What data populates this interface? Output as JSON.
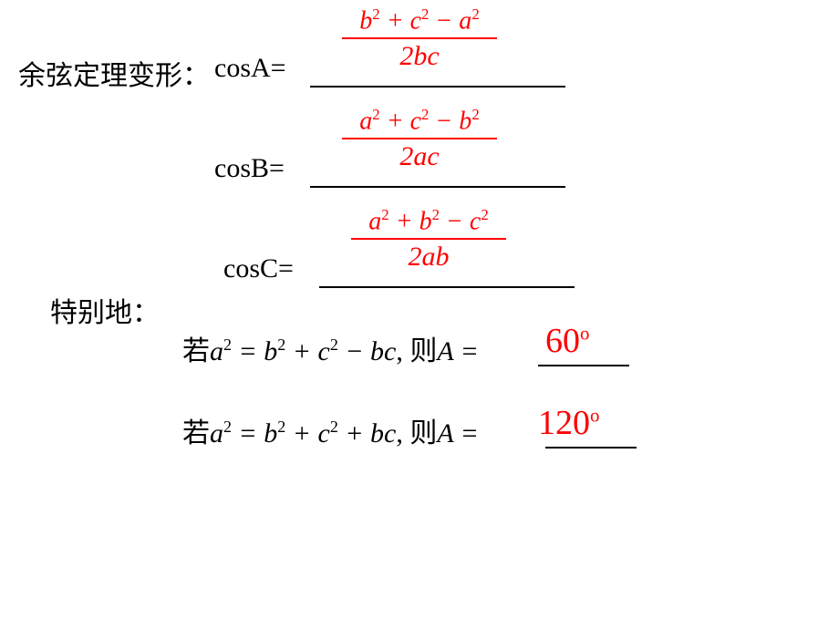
{
  "title": "余弦定理变形：",
  "rows": [
    {
      "label": "cosA=",
      "numerator_html": "b<sup>2</sup> + c<sup>2</sup> − a<sup>2</sup>",
      "denominator_html": "2bc"
    },
    {
      "label": "cosB=",
      "numerator_html": "a<sup>2</sup> + c<sup>2</sup> − b<sup>2</sup>",
      "denominator_html": "2ac"
    },
    {
      "label": "cosC=",
      "numerator_html": "a<sup>2</sup> + b<sup>2</sup> − c<sup>2</sup>",
      "denominator_html": "2ab"
    }
  ],
  "special_label": "特别地：",
  "special_cases": [
    {
      "prefix": "若",
      "equation_html": "a<sup>2</sup> = b<sup>2</sup> + c<sup>2</sup> − bc",
      "mid": ", 则",
      "var": "A =",
      "answer": "60",
      "answer_fontsize": 38
    },
    {
      "prefix": "若",
      "equation_html": "a<sup>2</sup> = b<sup>2</sup> + c<sup>2</sup> + bc",
      "mid": ", 则",
      "var": "A =",
      "answer": "120",
      "answer_fontsize": 38
    }
  ],
  "colors": {
    "text": "#000000",
    "answer": "#ff0000",
    "background": "#ffffff"
  }
}
